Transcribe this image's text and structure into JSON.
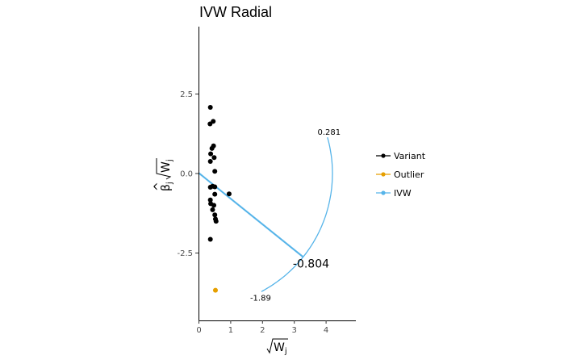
{
  "chart_data": {
    "type": "scatter",
    "title": "IVW Radial",
    "xlabel": "√W_j",
    "ylabel": "β̂_j √W_j",
    "xlim": [
      0,
      4.9
    ],
    "ylim": [
      -4.6,
      4.6
    ],
    "x_ticks": [
      "0",
      "1",
      "2",
      "3",
      "4"
    ],
    "y_ticks": [
      "-2.5",
      "0.0",
      "2.5"
    ],
    "grid": false,
    "legend_position": "right",
    "colors": {
      "variant": "#000000",
      "outlier": "#E69F00",
      "ivw": "#56B4E9"
    },
    "series": [
      {
        "name": "Variant",
        "points": [
          [
            0.36,
            2.08
          ],
          [
            0.45,
            1.64
          ],
          [
            0.35,
            1.56
          ],
          [
            0.46,
            0.87
          ],
          [
            0.41,
            0.79
          ],
          [
            0.37,
            0.62
          ],
          [
            0.48,
            0.5
          ],
          [
            0.36,
            0.38
          ],
          [
            0.5,
            0.07
          ],
          [
            0.43,
            -0.4
          ],
          [
            0.36,
            -0.43
          ],
          [
            0.5,
            -0.42
          ],
          [
            0.5,
            -0.65
          ],
          [
            0.95,
            -0.64
          ],
          [
            0.36,
            -0.83
          ],
          [
            0.37,
            -0.95
          ],
          [
            0.47,
            -1.0
          ],
          [
            0.43,
            -1.14
          ],
          [
            0.5,
            -1.3
          ],
          [
            0.52,
            -1.43
          ],
          [
            0.54,
            -1.5
          ],
          [
            0.36,
            -2.07
          ]
        ]
      },
      {
        "name": "Outlier",
        "points": [
          [
            0.52,
            -3.67
          ]
        ]
      },
      {
        "name": "IVW",
        "estimate": -0.804,
        "ci": [
          -1.89,
          0.281
        ],
        "arc_labels": [
          "0.281",
          "-0.804",
          "-1.89"
        ]
      }
    ]
  }
}
